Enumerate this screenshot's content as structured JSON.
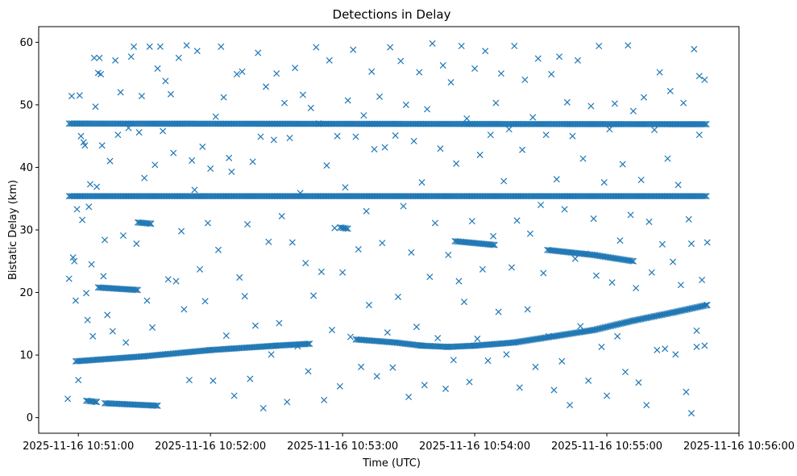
{
  "chart_data": {
    "type": "scatter",
    "title": "Detections in Delay",
    "xlabel": "Time (UTC)",
    "ylabel": "Bistatic Delay (km)",
    "marker": "x",
    "color": "#1f77b4",
    "x_unit": "minutes after 2025-11-16 10:50:00",
    "xlim": [
      0.7,
      6.0
    ],
    "ylim": [
      -2.5,
      62.5
    ],
    "x_ticks": [
      {
        "value": 1,
        "label": "2025-11-16 10:51:00"
      },
      {
        "value": 2,
        "label": "2025-11-16 10:52:00"
      },
      {
        "value": 3,
        "label": "2025-11-16 10:53:00"
      },
      {
        "value": 4,
        "label": "2025-11-16 10:54:00"
      },
      {
        "value": 5,
        "label": "2025-11-16 10:55:00"
      },
      {
        "value": 6,
        "label": "2025-11-16 10:56:00"
      }
    ],
    "y_ticks": [
      {
        "value": 0,
        "label": "0"
      },
      {
        "value": 10,
        "label": "10"
      },
      {
        "value": 20,
        "label": "20"
      },
      {
        "value": 30,
        "label": "30"
      },
      {
        "value": 40,
        "label": "40"
      },
      {
        "value": 50,
        "label": "50"
      },
      {
        "value": 60,
        "label": "60"
      }
    ],
    "dense_tracks": [
      {
        "name": "track-47km",
        "x_start": 0.93,
        "x_end": 5.76,
        "x_step": 0.012,
        "y_start": 47.0,
        "y_end": 46.9
      },
      {
        "name": "track-35km",
        "x_start": 0.93,
        "x_end": 5.76,
        "x_step": 0.012,
        "y_start": 35.4,
        "y_end": 35.4
      }
    ],
    "curved_tracks": [
      {
        "name": "track-rising",
        "x_step": 0.012,
        "points": [
          [
            0.98,
            9.0
          ],
          [
            1.5,
            9.8
          ],
          [
            2.0,
            10.8
          ],
          [
            2.5,
            11.5
          ],
          [
            2.75,
            11.8
          ]
        ]
      },
      {
        "name": "track-dip",
        "x_step": 0.012,
        "points": [
          [
            3.1,
            12.5
          ],
          [
            3.4,
            12.0
          ],
          [
            3.6,
            11.5
          ],
          [
            3.8,
            11.3
          ],
          [
            4.0,
            11.5
          ],
          [
            4.3,
            12.0
          ],
          [
            4.6,
            13.0
          ],
          [
            4.9,
            14.0
          ],
          [
            5.2,
            15.5
          ],
          [
            5.5,
            16.8
          ],
          [
            5.76,
            18.0
          ]
        ]
      },
      {
        "name": "track-28km",
        "x_step": 0.012,
        "points": [
          [
            3.85,
            28.2
          ],
          [
            4.15,
            27.6
          ]
        ]
      },
      {
        "name": "track-26km",
        "x_step": 0.012,
        "points": [
          [
            4.55,
            26.8
          ],
          [
            4.9,
            26.0
          ],
          [
            5.2,
            25.0
          ]
        ]
      },
      {
        "name": "track-20km",
        "x_step": 0.012,
        "points": [
          [
            1.15,
            20.8
          ],
          [
            1.45,
            20.4
          ]
        ]
      },
      {
        "name": "track-2km",
        "x_step": 0.012,
        "points": [
          [
            1.2,
            2.3
          ],
          [
            1.6,
            1.9
          ]
        ]
      },
      {
        "name": "track-31km",
        "x_step": 0.012,
        "points": [
          [
            1.45,
            31.2
          ],
          [
            1.55,
            31.0
          ]
        ]
      },
      {
        "name": "track-30km",
        "x_step": 0.012,
        "points": [
          [
            2.98,
            30.4
          ],
          [
            3.04,
            30.2
          ]
        ]
      },
      {
        "name": "track-2-5km",
        "x_step": 0.012,
        "points": [
          [
            1.06,
            2.7
          ],
          [
            1.14,
            2.5
          ]
        ]
      }
    ],
    "scatter": [
      [
        0.92,
        3.0
      ],
      [
        0.93,
        22.2
      ],
      [
        0.95,
        51.4
      ],
      [
        0.96,
        25.6
      ],
      [
        0.97,
        25.0
      ],
      [
        0.98,
        18.7
      ],
      [
        0.99,
        33.3
      ],
      [
        1.0,
        6.0
      ],
      [
        1.01,
        51.5
      ],
      [
        1.02,
        45.0
      ],
      [
        1.03,
        31.6
      ],
      [
        1.04,
        44.0
      ],
      [
        1.05,
        43.5
      ],
      [
        1.06,
        19.9
      ],
      [
        1.07,
        15.6
      ],
      [
        1.08,
        33.7
      ],
      [
        1.09,
        37.3
      ],
      [
        1.1,
        24.5
      ],
      [
        1.11,
        13.0
      ],
      [
        1.12,
        57.5
      ],
      [
        1.13,
        49.7
      ],
      [
        1.14,
        36.9
      ],
      [
        1.15,
        55.1
      ],
      [
        1.16,
        57.5
      ],
      [
        1.17,
        54.9
      ],
      [
        1.18,
        43.5
      ],
      [
        1.19,
        22.6
      ],
      [
        1.2,
        28.4
      ],
      [
        1.22,
        16.4
      ],
      [
        1.24,
        41.0
      ],
      [
        1.26,
        13.8
      ],
      [
        1.28,
        57.1
      ],
      [
        1.3,
        45.2
      ],
      [
        1.32,
        52.0
      ],
      [
        1.34,
        29.1
      ],
      [
        1.36,
        12.0
      ],
      [
        1.38,
        46.3
      ],
      [
        1.4,
        57.7
      ],
      [
        1.42,
        59.3
      ],
      [
        1.44,
        27.8
      ],
      [
        1.46,
        45.6
      ],
      [
        1.48,
        51.4
      ],
      [
        1.5,
        38.3
      ],
      [
        1.52,
        18.7
      ],
      [
        1.54,
        59.3
      ],
      [
        1.56,
        14.4
      ],
      [
        1.58,
        40.4
      ],
      [
        1.6,
        55.8
      ],
      [
        1.62,
        59.3
      ],
      [
        1.64,
        45.8
      ],
      [
        1.66,
        53.8
      ],
      [
        1.68,
        22.1
      ],
      [
        1.7,
        51.7
      ],
      [
        1.72,
        42.3
      ],
      [
        1.74,
        21.8
      ],
      [
        1.76,
        57.5
      ],
      [
        1.78,
        29.8
      ],
      [
        1.8,
        17.3
      ],
      [
        1.82,
        59.5
      ],
      [
        1.84,
        6.0
      ],
      [
        1.86,
        41.1
      ],
      [
        1.88,
        36.4
      ],
      [
        1.9,
        58.6
      ],
      [
        1.92,
        23.7
      ],
      [
        1.94,
        43.3
      ],
      [
        1.96,
        18.6
      ],
      [
        1.98,
        31.1
      ],
      [
        2.0,
        39.8
      ],
      [
        2.02,
        5.9
      ],
      [
        2.04,
        48.1
      ],
      [
        2.06,
        26.8
      ],
      [
        2.08,
        59.3
      ],
      [
        2.1,
        51.2
      ],
      [
        2.12,
        13.1
      ],
      [
        2.14,
        41.5
      ],
      [
        2.16,
        39.3
      ],
      [
        2.18,
        3.5
      ],
      [
        2.2,
        54.9
      ],
      [
        2.22,
        22.4
      ],
      [
        2.24,
        55.3
      ],
      [
        2.26,
        19.4
      ],
      [
        2.28,
        30.9
      ],
      [
        2.3,
        6.2
      ],
      [
        2.32,
        40.9
      ],
      [
        2.34,
        14.7
      ],
      [
        2.36,
        58.3
      ],
      [
        2.38,
        44.9
      ],
      [
        2.4,
        1.5
      ],
      [
        2.42,
        52.9
      ],
      [
        2.44,
        28.1
      ],
      [
        2.46,
        10.1
      ],
      [
        2.48,
        44.4
      ],
      [
        2.5,
        55.0
      ],
      [
        2.52,
        15.1
      ],
      [
        2.54,
        32.2
      ],
      [
        2.56,
        50.3
      ],
      [
        2.58,
        2.5
      ],
      [
        2.6,
        44.7
      ],
      [
        2.62,
        28.0
      ],
      [
        2.64,
        55.9
      ],
      [
        2.66,
        11.4
      ],
      [
        2.68,
        35.9
      ],
      [
        2.7,
        51.6
      ],
      [
        2.72,
        24.7
      ],
      [
        2.74,
        7.4
      ],
      [
        2.76,
        49.5
      ],
      [
        2.78,
        19.5
      ],
      [
        2.8,
        59.2
      ],
      [
        2.82,
        47.0
      ],
      [
        2.84,
        23.3
      ],
      [
        2.86,
        2.8
      ],
      [
        2.88,
        40.3
      ],
      [
        2.9,
        57.1
      ],
      [
        2.92,
        14.0
      ],
      [
        2.94,
        30.3
      ],
      [
        2.96,
        45.0
      ],
      [
        2.98,
        5.0
      ],
      [
        3.0,
        23.2
      ],
      [
        3.02,
        36.8
      ],
      [
        3.04,
        50.7
      ],
      [
        3.06,
        12.9
      ],
      [
        3.08,
        58.8
      ],
      [
        3.1,
        44.9
      ],
      [
        3.12,
        26.9
      ],
      [
        3.14,
        8.1
      ],
      [
        3.16,
        48.3
      ],
      [
        3.18,
        33.0
      ],
      [
        3.2,
        18.0
      ],
      [
        3.22,
        55.3
      ],
      [
        3.24,
        42.9
      ],
      [
        3.26,
        6.6
      ],
      [
        3.28,
        51.3
      ],
      [
        3.3,
        27.9
      ],
      [
        3.32,
        43.2
      ],
      [
        3.34,
        13.6
      ],
      [
        3.36,
        59.2
      ],
      [
        3.38,
        8.0
      ],
      [
        3.4,
        45.1
      ],
      [
        3.42,
        19.3
      ],
      [
        3.44,
        57.0
      ],
      [
        3.46,
        33.8
      ],
      [
        3.48,
        50.0
      ],
      [
        3.5,
        3.3
      ],
      [
        3.52,
        26.4
      ],
      [
        3.54,
        44.2
      ],
      [
        3.56,
        14.5
      ],
      [
        3.58,
        55.2
      ],
      [
        3.6,
        37.6
      ],
      [
        3.62,
        5.2
      ],
      [
        3.64,
        49.3
      ],
      [
        3.66,
        22.5
      ],
      [
        3.68,
        59.8
      ],
      [
        3.7,
        31.1
      ],
      [
        3.72,
        12.7
      ],
      [
        3.74,
        43.0
      ],
      [
        3.76,
        56.3
      ],
      [
        3.78,
        4.6
      ],
      [
        3.8,
        26.0
      ],
      [
        3.82,
        53.6
      ],
      [
        3.84,
        9.2
      ],
      [
        3.86,
        40.6
      ],
      [
        3.88,
        21.8
      ],
      [
        3.9,
        59.4
      ],
      [
        3.92,
        18.5
      ],
      [
        3.94,
        47.8
      ],
      [
        3.96,
        5.7
      ],
      [
        3.98,
        31.4
      ],
      [
        4.0,
        55.8
      ],
      [
        4.02,
        12.6
      ],
      [
        4.04,
        42.0
      ],
      [
        4.06,
        23.7
      ],
      [
        4.08,
        58.6
      ],
      [
        4.1,
        9.1
      ],
      [
        4.12,
        45.2
      ],
      [
        4.14,
        29.0
      ],
      [
        4.16,
        50.3
      ],
      [
        4.18,
        16.9
      ],
      [
        4.2,
        55.0
      ],
      [
        4.22,
        37.8
      ],
      [
        4.24,
        10.1
      ],
      [
        4.26,
        46.1
      ],
      [
        4.28,
        24.0
      ],
      [
        4.3,
        59.4
      ],
      [
        4.32,
        31.5
      ],
      [
        4.34,
        4.8
      ],
      [
        4.36,
        42.8
      ],
      [
        4.38,
        54.0
      ],
      [
        4.4,
        17.3
      ],
      [
        4.42,
        29.4
      ],
      [
        4.44,
        48.0
      ],
      [
        4.46,
        8.1
      ],
      [
        4.48,
        57.4
      ],
      [
        4.5,
        34.0
      ],
      [
        4.52,
        23.1
      ],
      [
        4.54,
        45.2
      ],
      [
        4.56,
        13.0
      ],
      [
        4.58,
        54.9
      ],
      [
        4.6,
        4.4
      ],
      [
        4.62,
        38.1
      ],
      [
        4.64,
        57.7
      ],
      [
        4.66,
        9.0
      ],
      [
        4.68,
        33.3
      ],
      [
        4.7,
        50.4
      ],
      [
        4.72,
        2.0
      ],
      [
        4.74,
        45.0
      ],
      [
        4.76,
        25.4
      ],
      [
        4.78,
        57.1
      ],
      [
        4.8,
        14.6
      ],
      [
        4.82,
        41.4
      ],
      [
        4.84,
        26.2
      ],
      [
        4.86,
        5.9
      ],
      [
        4.88,
        49.8
      ],
      [
        4.9,
        31.8
      ],
      [
        4.92,
        22.7
      ],
      [
        4.94,
        59.4
      ],
      [
        4.96,
        11.3
      ],
      [
        4.98,
        37.6
      ],
      [
        5.0,
        3.5
      ],
      [
        5.02,
        46.1
      ],
      [
        5.04,
        21.6
      ],
      [
        5.06,
        50.2
      ],
      [
        5.08,
        13.0
      ],
      [
        5.1,
        28.3
      ],
      [
        5.12,
        40.5
      ],
      [
        5.14,
        7.3
      ],
      [
        5.16,
        59.5
      ],
      [
        5.18,
        32.4
      ],
      [
        5.2,
        49.0
      ],
      [
        5.22,
        20.7
      ],
      [
        5.24,
        5.6
      ],
      [
        5.26,
        38.0
      ],
      [
        5.28,
        51.2
      ],
      [
        5.3,
        2.0
      ],
      [
        5.32,
        31.3
      ],
      [
        5.34,
        23.2
      ],
      [
        5.36,
        46.0
      ],
      [
        5.38,
        10.8
      ],
      [
        5.4,
        55.2
      ],
      [
        5.42,
        27.7
      ],
      [
        5.44,
        11.0
      ],
      [
        5.46,
        41.4
      ],
      [
        5.48,
        52.2
      ],
      [
        5.5,
        24.9
      ],
      [
        5.52,
        10.1
      ],
      [
        5.54,
        37.2
      ],
      [
        5.56,
        21.2
      ],
      [
        5.58,
        50.3
      ],
      [
        5.6,
        4.1
      ],
      [
        5.62,
        31.7
      ],
      [
        5.64,
        0.7
      ],
      [
        5.66,
        58.9
      ],
      [
        5.68,
        13.9
      ],
      [
        5.7,
        45.2
      ],
      [
        5.72,
        22.0
      ],
      [
        5.74,
        54.0
      ],
      [
        5.76,
        28.0
      ],
      [
        5.74,
        11.5
      ],
      [
        5.7,
        54.6
      ],
      [
        5.68,
        11.3
      ],
      [
        5.64,
        27.8
      ]
    ]
  }
}
